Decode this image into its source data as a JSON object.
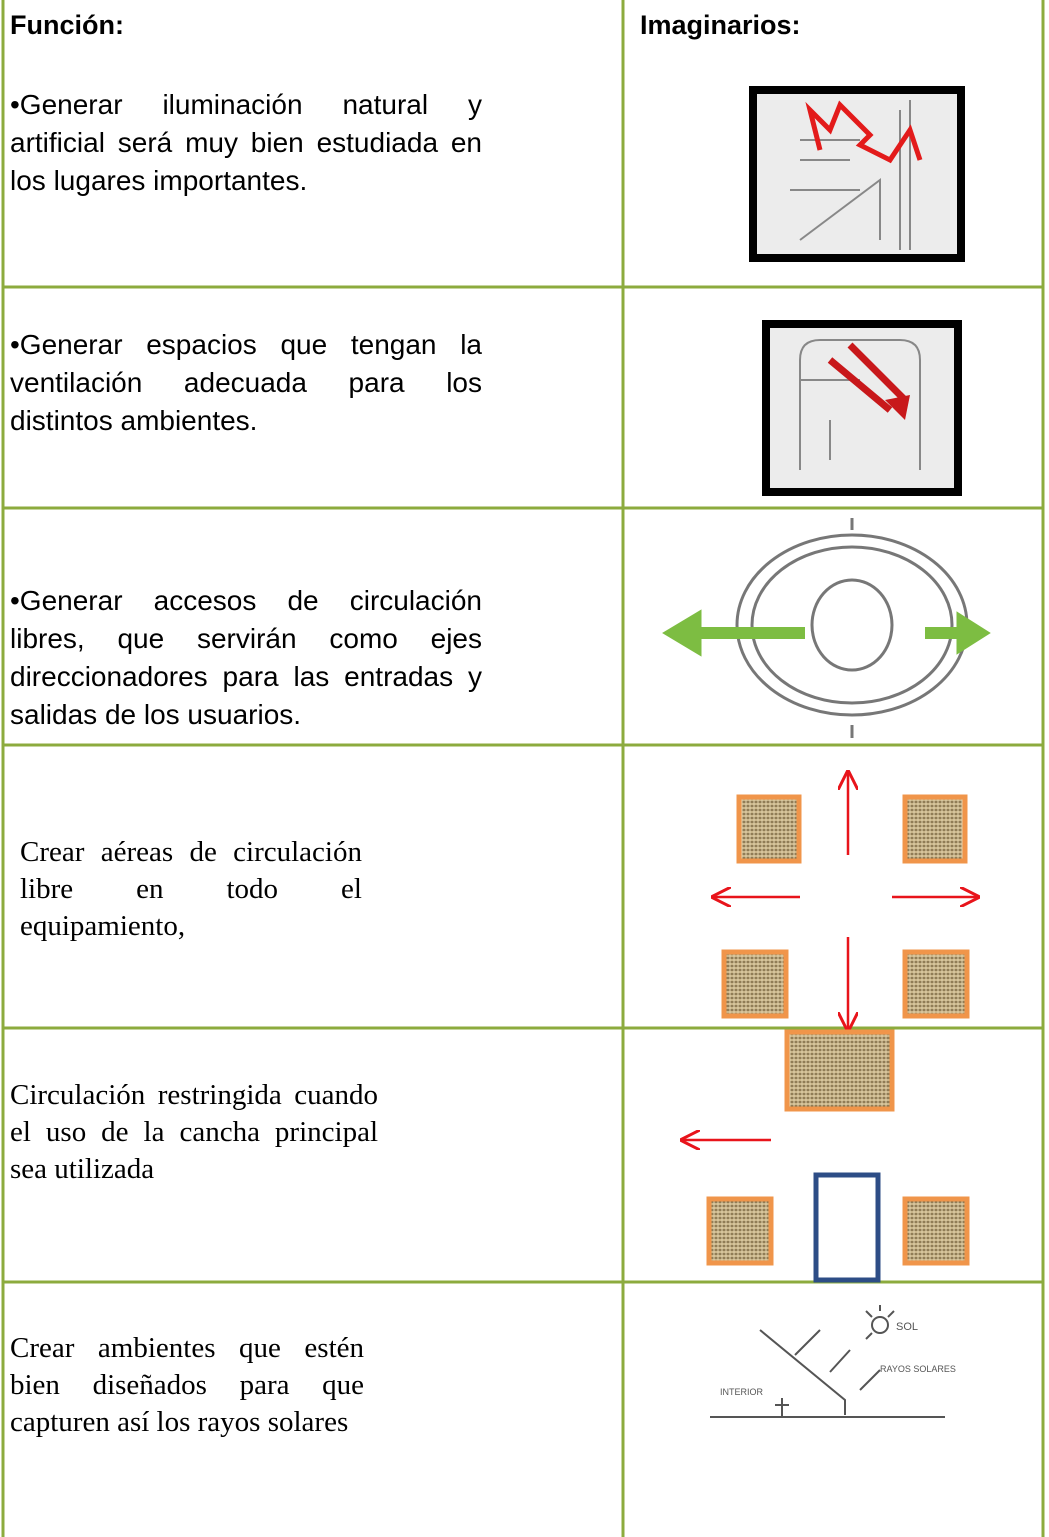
{
  "header": {
    "left": "Función:",
    "right": "Imaginarios:"
  },
  "rows": [
    {
      "text": "•Generar iluminación natural y artificial será muy bien estudiada en los lugares importantes."
    },
    {
      "text": "•Generar espacios que tengan la ventilación adecuada para los distintos ambientes."
    },
    {
      "text": "•Generar accesos de circulación libres, que servirán como ejes direccionadores para las entradas y salidas de los usuarios."
    },
    {
      "text": "Crear aéreas de circulación libre en todo el equipamiento,"
    },
    {
      "text": "Circulación restringida cuando el uso de la cancha principal sea utilizada"
    },
    {
      "text": "Crear ambientes que estén bien diseñados para que capturen así los rayos solares"
    }
  ],
  "sketch_labels": {
    "sun": "SOL",
    "interior": "INTERIOR",
    "rays": "RAYOS SOLARES"
  }
}
